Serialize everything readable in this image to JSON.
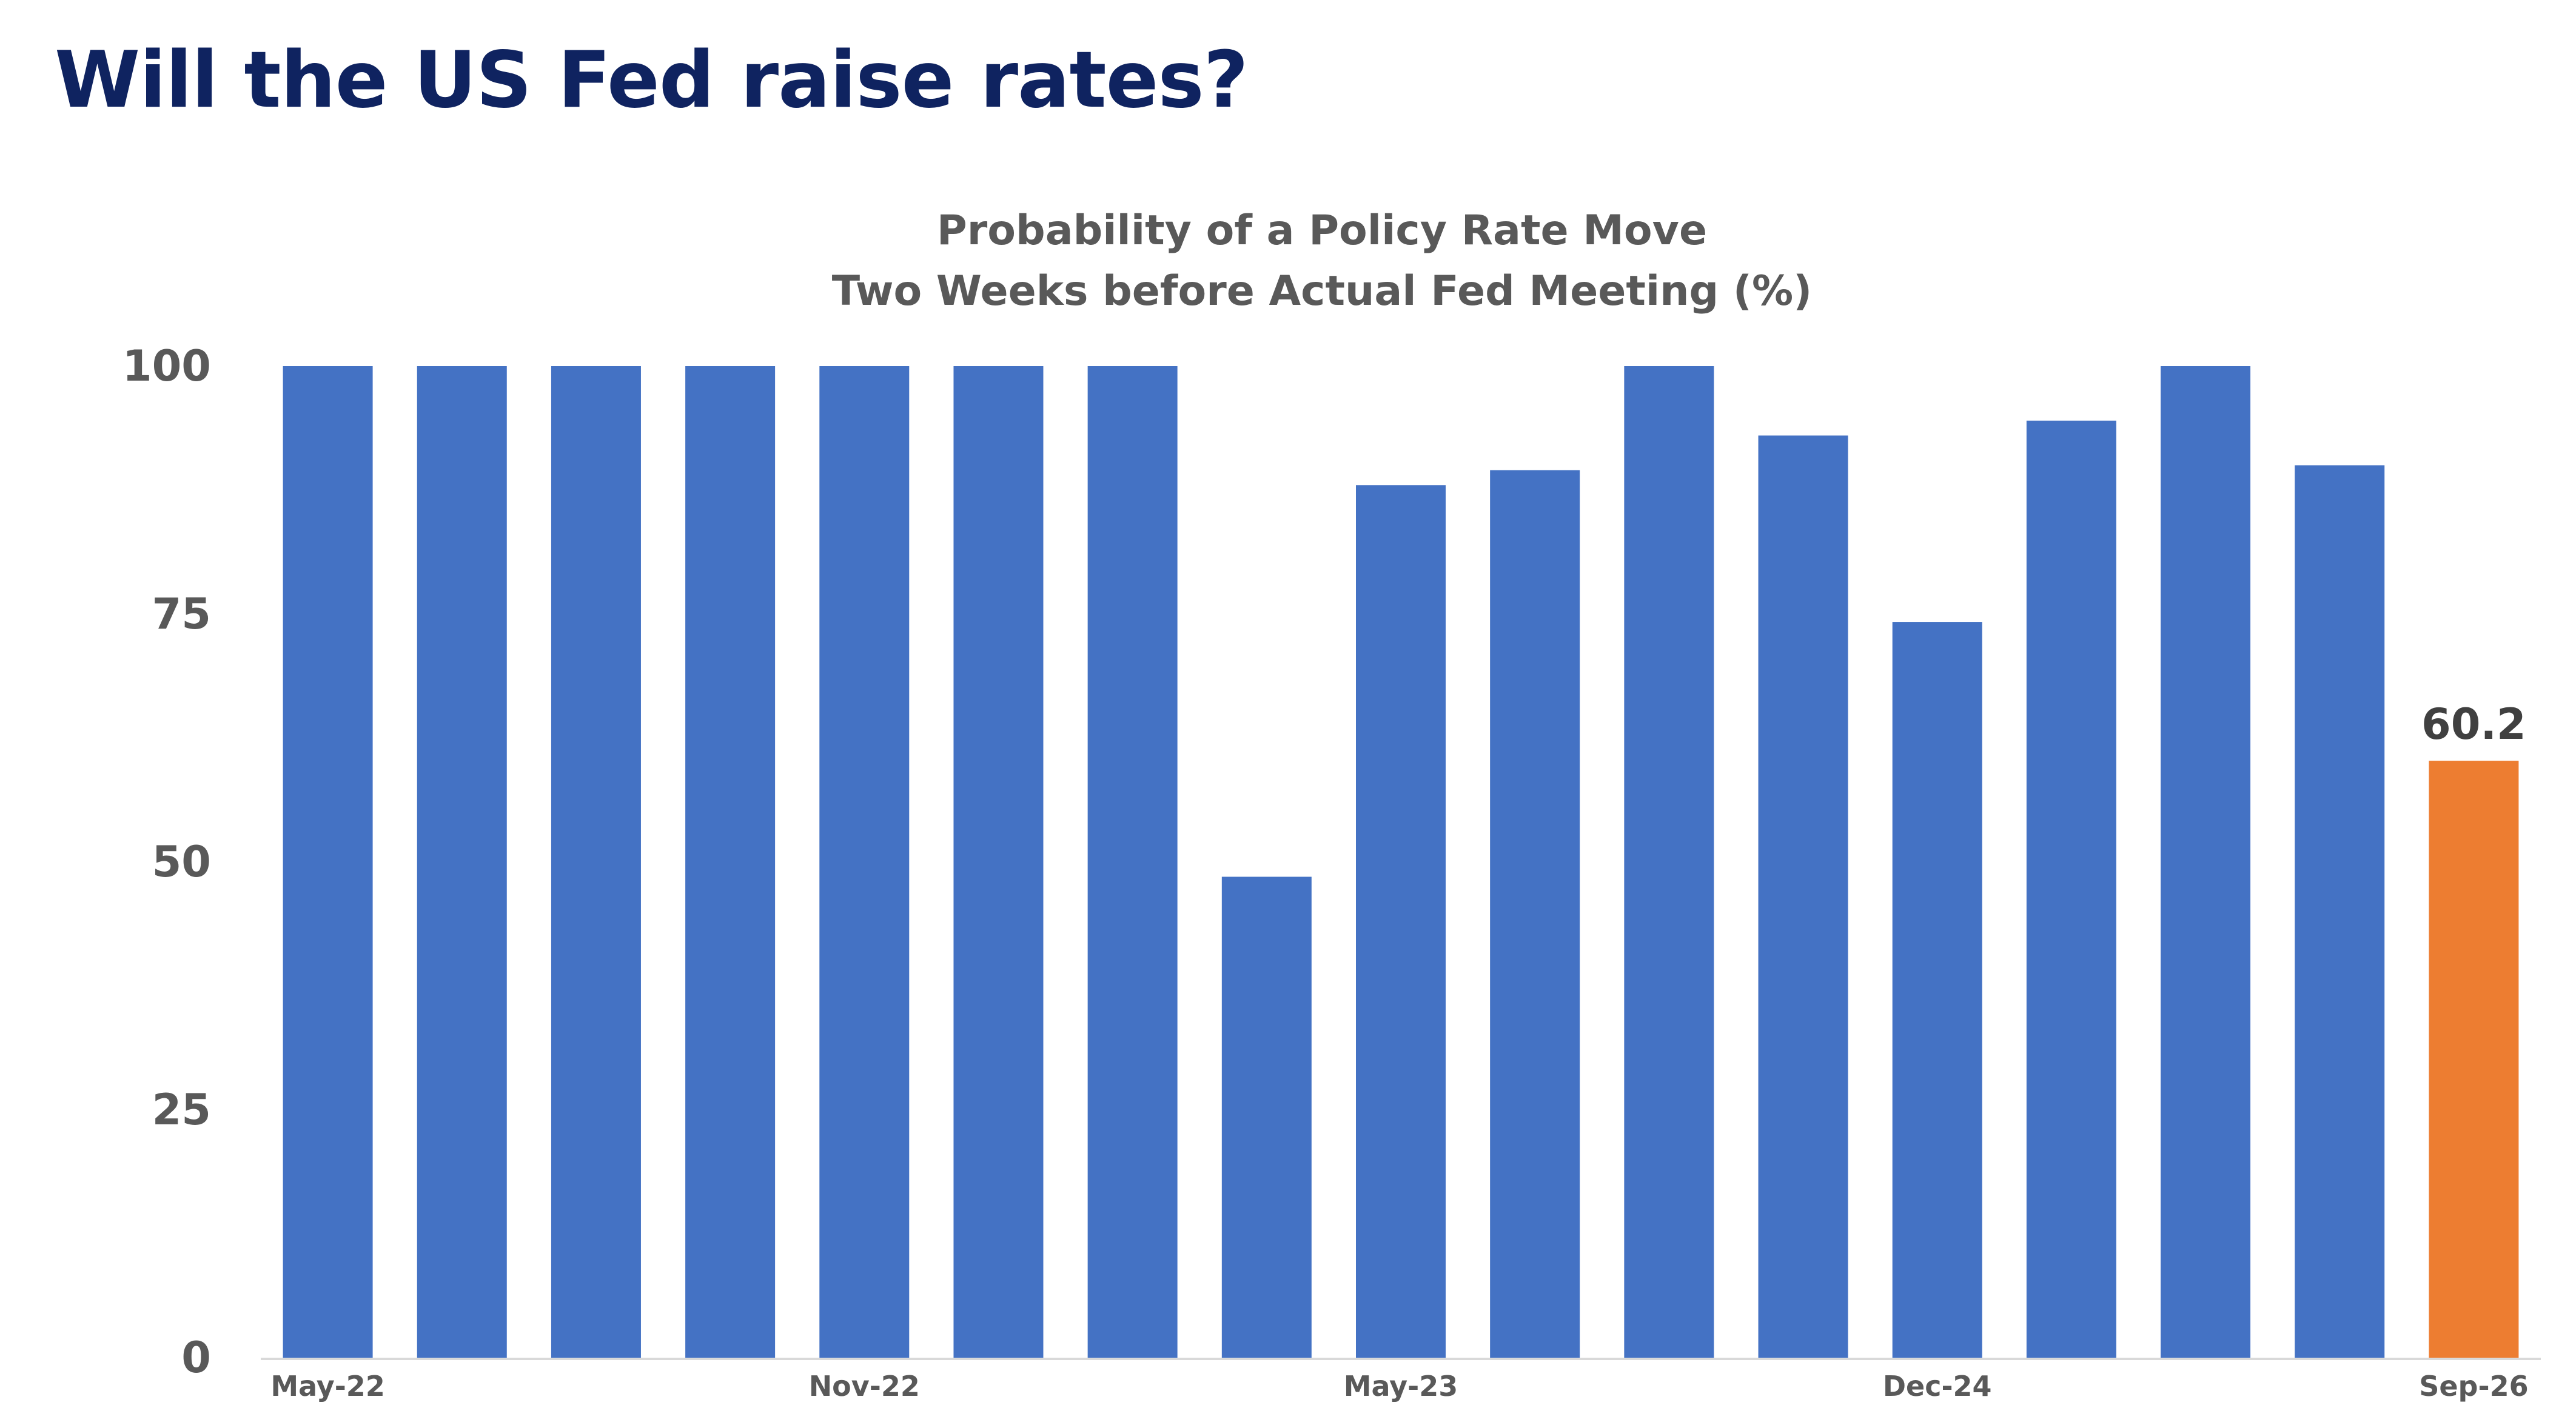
{
  "page_title": "Will the US Fed raise rates?",
  "chart_data": {
    "type": "bar",
    "title": "Probability of a Policy Rate Move",
    "subtitle": "Two Weeks before Actual Fed Meeting (%)",
    "xlabel": "",
    "ylabel": "",
    "ylim": [
      0,
      100
    ],
    "yticks": [
      0,
      25,
      50,
      75,
      100
    ],
    "grid": false,
    "legend": "none",
    "x_tick_labels": [
      {
        "index": 0,
        "label": "May-22"
      },
      {
        "index": 4,
        "label": "Nov-22"
      },
      {
        "index": 8,
        "label": "May-23"
      },
      {
        "index": 12,
        "label": "Dec-24"
      },
      {
        "index": 16,
        "label": "Sep-26"
      }
    ],
    "values": [
      100,
      100,
      100,
      100,
      100,
      100,
      100,
      48.5,
      88,
      89.5,
      100,
      93,
      74.2,
      94.5,
      100,
      90,
      60.2
    ],
    "data_labels": [
      {
        "index": 16,
        "text": "60.2"
      }
    ],
    "highlight_index": 16,
    "colors": {
      "bar": "#4472c4",
      "highlight": "#ed7d31",
      "axis": "#d9d9d9"
    }
  }
}
